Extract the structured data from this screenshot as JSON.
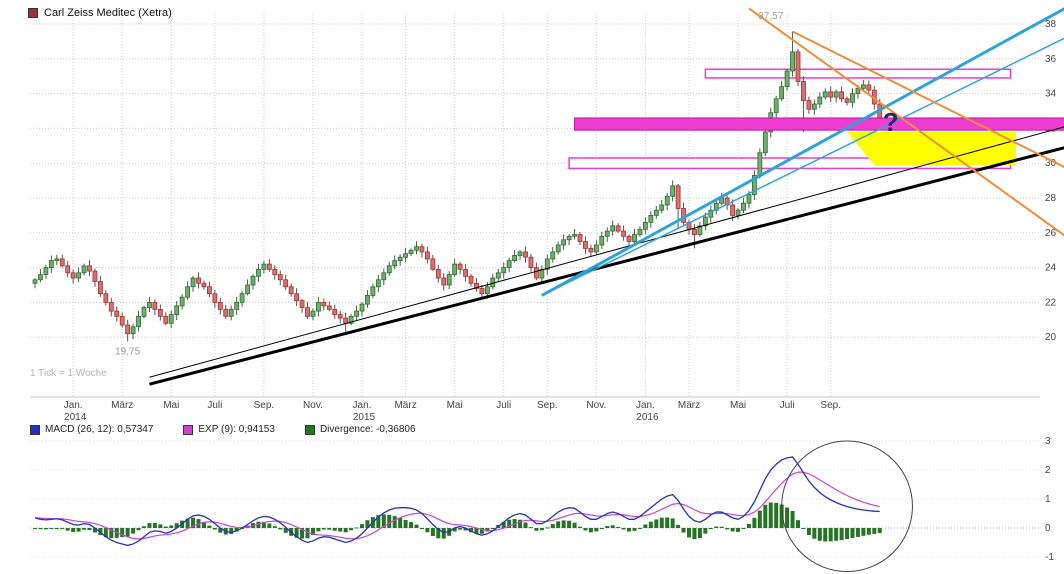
{
  "window": {
    "title": "Carl Zeiss Meditec (Xetra)"
  },
  "colors": {
    "up_candle": "#6fae6f",
    "up_border": "#2e6b2e",
    "down_candle": "#d97070",
    "down_border": "#a03030",
    "wick": "#555555",
    "macd_line": "#2233bb",
    "signal_line": "#cc44cc",
    "histogram": "#267326",
    "band_stroke": "#c014a4",
    "grid": "#cccccc",
    "axis_text": "#444444",
    "annotation_gray": "#9a9a9a",
    "question": "#222a66",
    "title_swatch": "#993333"
  },
  "chart_data": [
    {
      "type": "candlestick",
      "title": "Carl Zeiss Meditec (Xetra)",
      "timeframe_note": "1 Tick = 1 Woche",
      "x_tick_labels": [
        "Jan.",
        "März",
        "Mai",
        "Juli",
        "Sep.",
        "Nov.",
        "Jan.",
        "März",
        "Mai",
        "Juli",
        "Sep.",
        "Nov.",
        "Jan.",
        "März",
        "Mai",
        "Juli",
        "Sep."
      ],
      "x_tick_weeks": [
        7,
        16,
        25,
        33,
        42,
        51,
        60,
        68,
        77,
        86,
        94,
        103,
        112,
        120,
        129,
        138,
        146
      ],
      "year_labels": [
        {
          "label": "2014",
          "week": 7
        },
        {
          "label": "2015",
          "week": 60
        },
        {
          "label": "2016",
          "week": 112
        }
      ],
      "y_ticks": [
        20,
        22,
        24,
        26,
        28,
        30,
        32,
        34,
        36,
        38
      ],
      "y_range": [
        17.0,
        38.6
      ],
      "closes": [
        23.3,
        23.6,
        24.0,
        24.4,
        24.5,
        24.1,
        23.7,
        23.4,
        23.7,
        24.1,
        23.8,
        23.2,
        22.5,
        22.0,
        21.5,
        21.2,
        20.7,
        20.2,
        20.6,
        21.2,
        21.7,
        22.0,
        21.6,
        21.2,
        20.8,
        21.3,
        21.8,
        22.3,
        22.9,
        23.4,
        23.1,
        22.9,
        22.5,
        22.0,
        21.6,
        21.2,
        21.6,
        22.0,
        22.5,
        23.0,
        23.5,
        23.9,
        24.2,
        23.9,
        23.6,
        23.3,
        22.9,
        22.5,
        22.1,
        21.7,
        21.2,
        21.5,
        22.0,
        21.8,
        21.6,
        21.3,
        21.1,
        20.8,
        21.2,
        21.5,
        21.9,
        22.4,
        22.9,
        23.3,
        23.7,
        24.1,
        24.4,
        24.6,
        24.8,
        25.0,
        25.2,
        24.9,
        24.5,
        23.9,
        23.4,
        23.0,
        23.6,
        24.2,
        23.9,
        23.5,
        23.1,
        22.8,
        22.5,
        22.9,
        23.4,
        23.7,
        24.0,
        24.4,
        24.7,
        24.9,
        24.6,
        24.0,
        23.4,
        23.9,
        24.5,
        24.9,
        25.3,
        25.6,
        25.8,
        25.9,
        25.5,
        25.1,
        24.9,
        25.3,
        25.8,
        26.1,
        26.4,
        26.1,
        25.8,
        25.5,
        25.9,
        26.2,
        26.6,
        27.0,
        27.3,
        27.6,
        28.1,
        28.7,
        27.4,
        26.6,
        26.2,
        25.9,
        26.4,
        26.9,
        27.3,
        27.7,
        28.0,
        27.6,
        27.0,
        27.3,
        27.7,
        28.2,
        29.3,
        30.6,
        31.8,
        32.9,
        33.7,
        34.4,
        35.3,
        36.4,
        34.7,
        33.6,
        33.1,
        33.4,
        33.8,
        34.1,
        33.8,
        34.1,
        33.7,
        33.5,
        34.0,
        34.3,
        34.5,
        34.2,
        33.4,
        32.4
      ],
      "wick_overrides": {
        "17": {
          "low": 19.75
        },
        "57": {
          "low": 20.3
        },
        "118": {
          "low": 26.2
        },
        "121": {
          "low": 25.1
        },
        "139": {
          "high": 37.57
        },
        "141": {
          "low": 31.8
        }
      },
      "high_label": {
        "week": 135,
        "price": 38.3,
        "text": "37,57"
      },
      "low_label": {
        "week": 17,
        "price": 19.0,
        "text": "19,75"
      },
      "question_mark": {
        "week": 157,
        "price": 32.3,
        "text": "?"
      },
      "overlays": {
        "trendlines": [
          {
            "name": "primary-uptrend-line",
            "color": "#000000",
            "width": 3,
            "from": [
              21,
              17.3
            ],
            "to": [
              189,
              30.9
            ]
          },
          {
            "name": "secondary-uptrend-line",
            "color": "#000000",
            "width": 1,
            "from": [
              21,
              17.7
            ],
            "to": [
              189,
              32.1
            ]
          },
          {
            "name": "acceleration-uptrend-line",
            "color": "#2fa3d9",
            "width": 3,
            "from": [
              93,
              22.4
            ],
            "to": [
              189,
              38.9
            ]
          },
          {
            "name": "acceleration-uptrend-line-2",
            "color": "#2fa3d9",
            "width": 1.5,
            "from": [
              93,
              22.4
            ],
            "to": [
              189,
              37.2
            ]
          },
          {
            "name": "downtrend-line-steep",
            "color": "#ef8f3c",
            "width": 2,
            "from": [
              131,
              38.9
            ],
            "to": [
              190,
              25.6
            ]
          },
          {
            "name": "downtrend-line-shallow",
            "color": "#ef8f3c",
            "width": 2,
            "from": [
              139,
              37.57
            ],
            "to": [
              190,
              29.6
            ]
          }
        ],
        "bands": [
          {
            "name": "resistance-zone-upper",
            "price_from": 34.9,
            "price_to": 35.4,
            "week_from": 123,
            "week_to": 179,
            "fill": "#ffffff",
            "stroke": "#ee3ed0",
            "solid": false
          },
          {
            "name": "resistance-zone-main",
            "price_from": 31.9,
            "price_to": 32.6,
            "week_from": 99,
            "week_to": 189,
            "fill": "#ee3ed0",
            "stroke": "#c014a4",
            "solid": true
          },
          {
            "name": "support-zone",
            "price_from": 29.7,
            "price_to": 30.3,
            "week_from": 98,
            "week_to": 179,
            "fill": "#ffffff",
            "stroke": "#ee3ed0",
            "solid": false
          }
        ],
        "target_polygon": {
          "name": "target-area-highlight",
          "fill": "#ffff00",
          "points": [
            [
              149,
              31.8
            ],
            [
              180,
              31.8
            ],
            [
              180,
              29.9
            ],
            [
              154,
              29.9
            ]
          ]
        }
      }
    },
    {
      "type": "line",
      "name": "MACD indicator panel",
      "legend": [
        {
          "label": "MACD (26, 12): 0,57347",
          "color": "#2233bb"
        },
        {
          "label": "EXP (9): 0,94153",
          "color": "#cc44cc"
        },
        {
          "label": "Divergence: -0,36806",
          "color": "#1e7a1e"
        }
      ],
      "y_ticks": [
        3,
        2,
        1,
        0,
        -1
      ],
      "y_range": [
        -1.15,
        3.1
      ],
      "signal_period": 9,
      "macd": [
        0.35,
        0.3,
        0.28,
        0.3,
        0.32,
        0.28,
        0.2,
        0.12,
        0.1,
        0.15,
        0.12,
        0.0,
        -0.15,
        -0.3,
        -0.42,
        -0.5,
        -0.55,
        -0.6,
        -0.55,
        -0.45,
        -0.3,
        -0.15,
        -0.1,
        -0.12,
        -0.18,
        -0.12,
        0.0,
        0.15,
        0.3,
        0.42,
        0.45,
        0.4,
        0.3,
        0.15,
        0.0,
        -0.12,
        -0.15,
        -0.1,
        0.0,
        0.12,
        0.25,
        0.35,
        0.4,
        0.38,
        0.3,
        0.18,
        0.02,
        -0.15,
        -0.3,
        -0.42,
        -0.5,
        -0.45,
        -0.35,
        -0.3,
        -0.32,
        -0.38,
        -0.44,
        -0.5,
        -0.45,
        -0.35,
        -0.2,
        0.0,
        0.2,
        0.38,
        0.52,
        0.62,
        0.68,
        0.7,
        0.7,
        0.68,
        0.62,
        0.5,
        0.32,
        0.12,
        -0.05,
        -0.15,
        -0.12,
        0.0,
        0.05,
        0.0,
        -0.1,
        -0.2,
        -0.25,
        -0.2,
        -0.1,
        0.05,
        0.2,
        0.35,
        0.45,
        0.5,
        0.45,
        0.3,
        0.15,
        0.15,
        0.25,
        0.4,
        0.55,
        0.65,
        0.7,
        0.68,
        0.55,
        0.4,
        0.3,
        0.3,
        0.4,
        0.5,
        0.55,
        0.5,
        0.4,
        0.3,
        0.3,
        0.4,
        0.55,
        0.7,
        0.85,
        1.0,
        1.1,
        1.15,
        0.95,
        0.65,
        0.4,
        0.25,
        0.2,
        0.3,
        0.45,
        0.55,
        0.55,
        0.45,
        0.35,
        0.3,
        0.4,
        0.6,
        0.9,
        1.3,
        1.7,
        2.0,
        2.2,
        2.35,
        2.42,
        2.45,
        2.2,
        1.9,
        1.62,
        1.4,
        1.22,
        1.08,
        0.97,
        0.88,
        0.8,
        0.74,
        0.69,
        0.65,
        0.62,
        0.6,
        0.58,
        0.57
      ],
      "circle_annotation": {
        "week_center": 149,
        "value_center": 0.75,
        "week_radius": 12,
        "value_radius": 2.25
      }
    }
  ]
}
